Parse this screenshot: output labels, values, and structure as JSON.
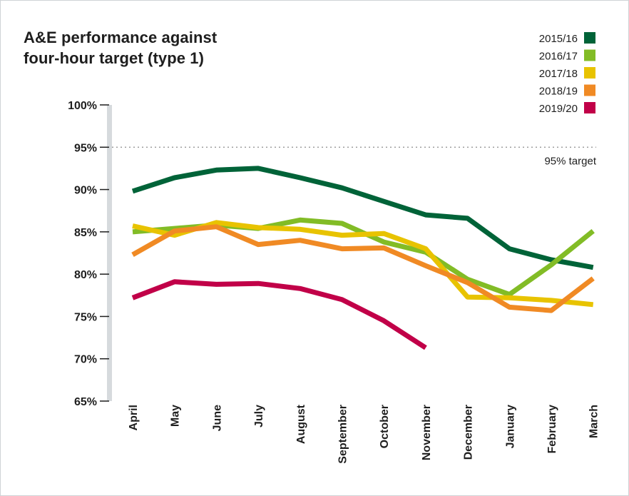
{
  "title_lines": [
    "A&E performance against",
    "four-hour target (type 1)"
  ],
  "chart_data": {
    "type": "line",
    "title": "A&E performance against four-hour target (type 1)",
    "x": [
      "April",
      "May",
      "June",
      "July",
      "August",
      "September",
      "October",
      "November",
      "December",
      "January",
      "February",
      "March"
    ],
    "ylim": [
      65,
      100
    ],
    "yticks": [
      100,
      95,
      90,
      85,
      80,
      75,
      70,
      65
    ],
    "ytick_labels": [
      "100%",
      "95%",
      "90%",
      "85%",
      "80%",
      "75%",
      "70%",
      "65%"
    ],
    "grid": false,
    "legend_position": "top-right",
    "series": [
      {
        "name": "2015/16",
        "color": "#006338",
        "values": [
          89.8,
          91.4,
          92.3,
          92.5,
          91.4,
          90.2,
          88.6,
          87.0,
          86.6,
          83.0,
          81.7,
          80.8
        ]
      },
      {
        "name": "2016/17",
        "color": "#82bc26",
        "values": [
          85.0,
          85.4,
          85.8,
          85.4,
          86.4,
          86.0,
          83.8,
          82.6,
          79.4,
          77.6,
          81.1,
          85.1
        ]
      },
      {
        "name": "2017/18",
        "color": "#e8c300",
        "values": [
          85.7,
          84.6,
          86.1,
          85.5,
          85.3,
          84.6,
          84.8,
          83.0,
          77.3,
          77.2,
          76.9,
          76.4
        ]
      },
      {
        "name": "2018/19",
        "color": "#f08a24",
        "values": [
          82.3,
          85.1,
          85.6,
          83.5,
          84.0,
          83.0,
          83.1,
          81.0,
          79.0,
          76.1,
          75.7,
          79.5
        ]
      },
      {
        "name": "2019/20",
        "color": "#c10048",
        "values": [
          77.2,
          79.1,
          78.8,
          78.9,
          78.3,
          77.0,
          74.5,
          71.3,
          null,
          null,
          null,
          null
        ]
      }
    ],
    "reference_lines": [
      {
        "value": 95,
        "label": "95% target",
        "style": "dotted",
        "color": "#8c8c8c"
      }
    ]
  }
}
